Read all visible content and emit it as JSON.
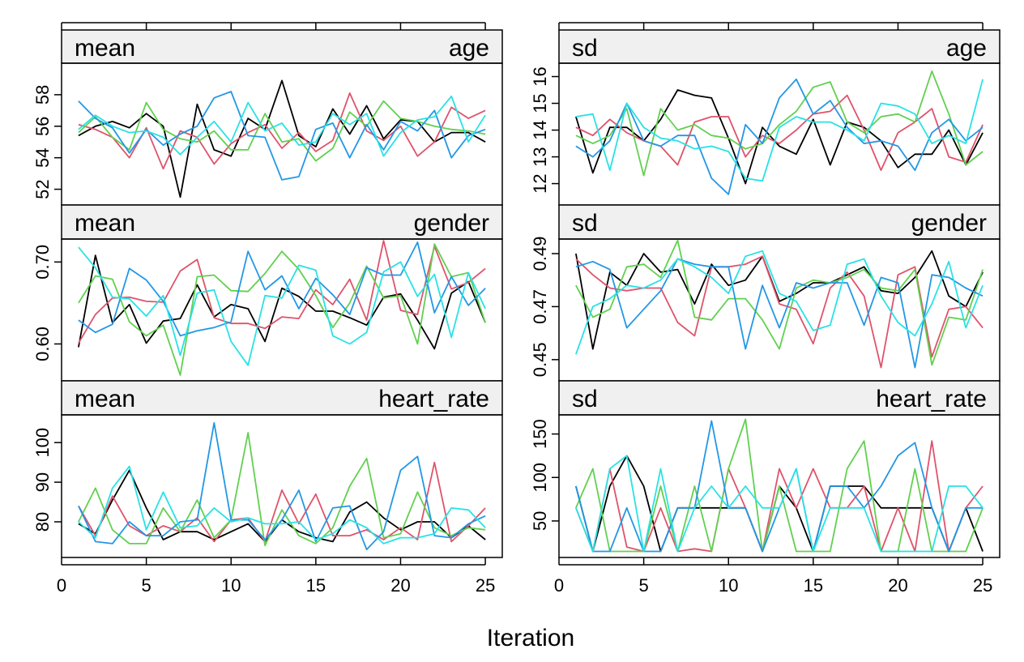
{
  "chart_data": {
    "type": "line",
    "xlabel": "Iteration",
    "xlim": [
      0,
      26
    ],
    "x_ticks": [
      0,
      5,
      10,
      15,
      20,
      25
    ],
    "x": [
      1,
      2,
      3,
      4,
      5,
      6,
      7,
      8,
      9,
      10,
      11,
      12,
      13,
      14,
      15,
      16,
      17,
      18,
      19,
      20,
      21,
      22,
      23,
      24,
      25
    ],
    "series_colors": [
      "#000000",
      "#DF536B",
      "#61D04F",
      "#2297E6",
      "#28E2E5"
    ],
    "panels": [
      {
        "id": "mean-age",
        "stat": "mean",
        "variable": "age",
        "ylim": [
          51,
          60
        ],
        "y_ticks": [
          52,
          54,
          56,
          58
        ],
        "series": [
          {
            "values": [
              55.4,
              56.0,
              56.3,
              55.9,
              56.8,
              56.0,
              51.5,
              57.4,
              54.5,
              54.1,
              56.5,
              55.8,
              58.9,
              55.4,
              54.7,
              57.1,
              55.5,
              57.3,
              55.2,
              56.4,
              56.3,
              55.0,
              55.6,
              55.6,
              55.0
            ]
          },
          {
            "values": [
              56.1,
              55.8,
              55.3,
              54.0,
              55.9,
              53.3,
              55.7,
              55.3,
              53.6,
              54.9,
              55.6,
              56.1,
              54.6,
              55.6,
              54.4,
              55.1,
              58.1,
              55.7,
              55.1,
              56.0,
              54.1,
              55.0,
              57.2,
              56.5,
              57.0
            ]
          },
          {
            "values": [
              55.6,
              56.6,
              55.3,
              54.5,
              57.5,
              55.8,
              55.2,
              55.0,
              55.7,
              54.5,
              54.5,
              56.8,
              55.0,
              55.2,
              53.8,
              54.6,
              56.9,
              56.0,
              57.6,
              56.5,
              56.3,
              56.0,
              55.8,
              55.7,
              55.5
            ]
          },
          {
            "values": [
              57.6,
              56.5,
              55.9,
              54.3,
              55.8,
              54.8,
              55.5,
              56.0,
              57.8,
              58.2,
              55.4,
              55.3,
              52.6,
              52.8,
              55.8,
              56.2,
              54.0,
              56.1,
              54.5,
              56.3,
              55.7,
              57.0,
              54.0,
              55.4,
              55.8
            ]
          },
          {
            "values": [
              55.8,
              56.7,
              56.0,
              55.6,
              55.7,
              55.3,
              54.2,
              55.3,
              56.3,
              55.0,
              57.5,
              55.7,
              56.2,
              54.8,
              55.0,
              56.8,
              56.1,
              56.8,
              54.1,
              55.6,
              56.4,
              56.6,
              57.9,
              55.0,
              56.7
            ]
          }
        ]
      },
      {
        "id": "sd-age",
        "stat": "sd",
        "variable": "age",
        "ylim": [
          11.2,
          16.5
        ],
        "y_ticks": [
          12,
          13,
          14,
          15,
          16
        ],
        "series": [
          {
            "values": [
              14.5,
              12.4,
              14.1,
              14.1,
              13.6,
              14.4,
              15.5,
              15.3,
              15.2,
              13.7,
              12.0,
              14.1,
              13.4,
              13.1,
              14.4,
              12.7,
              14.3,
              14.1,
              13.6,
              12.6,
              13.1,
              13.1,
              14.0,
              12.7,
              13.9
            ]
          },
          {
            "values": [
              14.1,
              13.8,
              14.4,
              13.9,
              13.6,
              13.4,
              12.7,
              14.3,
              14.5,
              14.5,
              13.0,
              13.8,
              13.5,
              14.0,
              14.6,
              14.7,
              15.3,
              14.0,
              12.5,
              13.9,
              14.3,
              14.8,
              13.0,
              12.8,
              14.2
            ]
          },
          {
            "values": [
              13.8,
              13.5,
              13.8,
              14.8,
              12.3,
              14.8,
              14.0,
              14.2,
              13.8,
              13.7,
              13.3,
              13.5,
              14.2,
              14.7,
              15.6,
              15.8,
              14.3,
              13.9,
              14.5,
              14.6,
              14.3,
              16.2,
              14.6,
              12.7,
              13.2
            ]
          },
          {
            "values": [
              13.4,
              13.0,
              13.6,
              15.0,
              13.6,
              13.4,
              13.8,
              13.8,
              12.2,
              11.6,
              14.2,
              13.5,
              15.2,
              15.9,
              14.6,
              15.1,
              14.1,
              13.5,
              13.6,
              13.4,
              12.5,
              13.9,
              14.4,
              13.6,
              14.1
            ]
          },
          {
            "values": [
              14.5,
              14.6,
              12.5,
              15.0,
              14.1,
              13.7,
              13.6,
              13.3,
              13.4,
              13.2,
              12.2,
              12.1,
              14.1,
              14.5,
              14.3,
              14.3,
              14.0,
              13.6,
              15.0,
              14.9,
              14.6,
              13.5,
              13.8,
              13.5,
              15.9
            ]
          }
        ]
      },
      {
        "id": "mean-gender",
        "stat": "mean",
        "variable": "gender",
        "ylim": [
          0.555,
          0.728
        ],
        "y_ticks": [
          0.6,
          0.7
        ],
        "y_tick_labels": [
          "0.60",
          "0.70"
        ],
        "series": [
          {
            "values": [
              0.596,
              0.708,
              0.626,
              0.648,
              0.601,
              0.628,
              0.631,
              0.672,
              0.633,
              0.648,
              0.643,
              0.603,
              0.668,
              0.658,
              0.64,
              0.64,
              0.632,
              0.623,
              0.657,
              0.661,
              0.629,
              0.594,
              0.662,
              0.676,
              0.626
            ]
          },
          {
            "values": [
              0.601,
              0.636,
              0.656,
              0.657,
              0.652,
              0.651,
              0.689,
              0.703,
              0.632,
              0.625,
              0.625,
              0.619,
              0.633,
              0.631,
              0.666,
              0.648,
              0.679,
              0.629,
              0.726,
              0.641,
              0.636,
              0.719,
              0.667,
              0.675,
              0.692
            ]
          },
          {
            "values": [
              0.65,
              0.683,
              0.679,
              0.627,
              0.61,
              0.623,
              0.562,
              0.682,
              0.684,
              0.665,
              0.664,
              0.686,
              0.713,
              0.691,
              0.659,
              0.62,
              0.65,
              0.695,
              0.656,
              0.659,
              0.6,
              0.722,
              0.682,
              0.687,
              0.626
            ]
          },
          {
            "values": [
              0.629,
              0.614,
              0.624,
              0.692,
              0.678,
              0.652,
              0.61,
              0.616,
              0.62,
              0.627,
              0.713,
              0.666,
              0.683,
              0.643,
              0.68,
              0.66,
              0.636,
              0.693,
              0.684,
              0.684,
              0.724,
              0.638,
              0.682,
              0.647,
              0.668
            ]
          },
          {
            "values": [
              0.718,
              0.693,
              0.657,
              0.655,
              0.634,
              0.659,
              0.586,
              0.662,
              0.666,
              0.603,
              0.574,
              0.659,
              0.656,
              0.696,
              0.69,
              0.61,
              0.6,
              0.614,
              0.688,
              0.7,
              0.658,
              0.685,
              0.608,
              0.687,
              0.643
            ]
          }
        ]
      },
      {
        "id": "sd-gender",
        "stat": "sd",
        "variable": "gender",
        "ylim": [
          0.442,
          0.4955
        ],
        "y_ticks": [
          0.45,
          0.47,
          0.49
        ],
        "y_tick_labels": [
          "0.45",
          "0.47",
          "0.49"
        ],
        "series": [
          {
            "values": [
              0.49,
              0.454,
              0.483,
              0.478,
              0.49,
              0.483,
              0.484,
              0.471,
              0.486,
              0.478,
              0.48,
              0.489,
              0.472,
              0.475,
              0.479,
              0.479,
              0.482,
              0.485,
              0.476,
              0.475,
              0.481,
              0.491,
              0.474,
              0.47,
              0.483
            ]
          },
          {
            "values": [
              0.488,
              0.482,
              0.477,
              0.476,
              0.477,
              0.477,
              0.464,
              0.459,
              0.485,
              0.485,
              0.486,
              0.489,
              0.471,
              0.469,
              0.456,
              0.477,
              0.483,
              0.474,
              0.447,
              0.482,
              0.485,
              0.451,
              0.469,
              0.47,
              0.462
            ]
          },
          {
            "values": [
              0.478,
              0.466,
              0.469,
              0.485,
              0.486,
              0.481,
              0.495,
              0.466,
              0.465,
              0.473,
              0.473,
              0.465,
              0.454,
              0.477,
              0.48,
              0.479,
              0.481,
              0.484,
              0.477,
              0.476,
              0.484,
              0.448,
              0.466,
              0.465,
              0.484
            ]
          },
          {
            "values": [
              0.485,
              0.487,
              0.484,
              0.462,
              0.469,
              0.476,
              0.488,
              0.486,
              0.485,
              0.485,
              0.454,
              0.478,
              0.462,
              0.479,
              0.477,
              0.479,
              0.479,
              0.463,
              0.481,
              0.479,
              0.447,
              0.482,
              0.481,
              0.477,
              0.474
            ]
          },
          {
            "values": [
              0.452,
              0.47,
              0.473,
              0.478,
              0.477,
              0.48,
              0.488,
              0.485,
              0.481,
              0.475,
              0.489,
              0.491,
              0.475,
              0.472,
              0.461,
              0.463,
              0.486,
              0.488,
              0.474,
              0.464,
              0.459,
              0.471,
              0.487,
              0.462,
              0.478
            ]
          }
        ]
      },
      {
        "id": "mean-heart-rate",
        "stat": "mean",
        "variable": "heart_rate",
        "ylim": [
          71,
          107
        ],
        "y_ticks": [
          80,
          90,
          100
        ],
        "series": [
          {
            "values": [
              79.5,
              77.0,
              85.5,
              93.0,
              83.5,
              75.5,
              77.5,
              77.5,
              75.5,
              77.5,
              79.5,
              75.0,
              80.5,
              77.5,
              76.0,
              75.0,
              82.5,
              85.0,
              81.0,
              78.0,
              80.0,
              80.0,
              76.0,
              79.0,
              75.5
            ]
          },
          {
            "values": [
              84.0,
              76.5,
              86.5,
              79.0,
              76.5,
              79.0,
              77.5,
              81.0,
              75.0,
              80.5,
              81.0,
              75.0,
              88.0,
              79.5,
              87.0,
              76.5,
              76.5,
              78.0,
              75.5,
              78.5,
              75.5,
              95.0,
              75.0,
              79.0,
              83.5
            ]
          },
          {
            "values": [
              80.0,
              88.5,
              78.0,
              74.5,
              74.5,
              83.5,
              77.5,
              85.5,
              76.0,
              80.5,
              102.5,
              74.0,
              83.0,
              76.5,
              74.5,
              78.5,
              89.0,
              96.0,
              76.0,
              77.0,
              87.5,
              78.5,
              76.5,
              78.5,
              78.0
            ]
          },
          {
            "values": [
              84.0,
              75.0,
              74.5,
              80.0,
              76.5,
              76.5,
              80.0,
              80.5,
              105.0,
              80.5,
              80.5,
              75.5,
              80.5,
              88.0,
              75.0,
              83.5,
              84.0,
              73.0,
              77.5,
              93.0,
              96.5,
              76.5,
              76.0,
              79.5,
              81.5
            ]
          },
          {
            "values": [
              80.0,
              76.0,
              88.5,
              94.0,
              78.0,
              87.5,
              78.5,
              79.0,
              83.5,
              80.0,
              81.0,
              79.5,
              79.5,
              80.0,
              75.5,
              77.0,
              80.5,
              78.5,
              74.5,
              76.0,
              76.0,
              77.0,
              83.5,
              83.0,
              78.5
            ]
          }
        ]
      },
      {
        "id": "sd-heart-rate",
        "stat": "sd",
        "variable": "heart_rate",
        "ylim": [
          8,
          172
        ],
        "y_ticks": [
          50,
          100,
          150
        ],
        "series": [
          {
            "values": [
              90,
              15,
              90,
              125,
              90,
              15,
              65,
              65,
              65,
              65,
              65,
              15,
              90,
              65,
              15,
              90,
              90,
              90,
              65,
              65,
              65,
              65,
              15,
              65,
              15
            ]
          },
          {
            "values": [
              65,
              15,
              110,
              20,
              15,
              65,
              15,
              18,
              15,
              110,
              65,
              15,
              110,
              65,
              110,
              65,
              65,
              90,
              15,
              65,
              15,
              142,
              15,
              65,
              90
            ]
          },
          {
            "values": [
              65,
              110,
              15,
              15,
              15,
              90,
              15,
              90,
              15,
              110,
              167,
              15,
              90,
              15,
              15,
              15,
              110,
              142,
              15,
              15,
              110,
              15,
              15,
              15,
              65
            ]
          },
          {
            "values": [
              90,
              15,
              15,
              65,
              15,
              15,
              65,
              65,
              165,
              65,
              65,
              15,
              65,
              110,
              15,
              90,
              90,
              65,
              90,
              125,
              140,
              65,
              15,
              65,
              65
            ]
          },
          {
            "values": [
              65,
              15,
              110,
              125,
              15,
              110,
              15,
              65,
              90,
              65,
              90,
              65,
              65,
              110,
              15,
              65,
              65,
              65,
              15,
              15,
              15,
              15,
              90,
              90,
              65
            ]
          }
        ]
      }
    ]
  }
}
